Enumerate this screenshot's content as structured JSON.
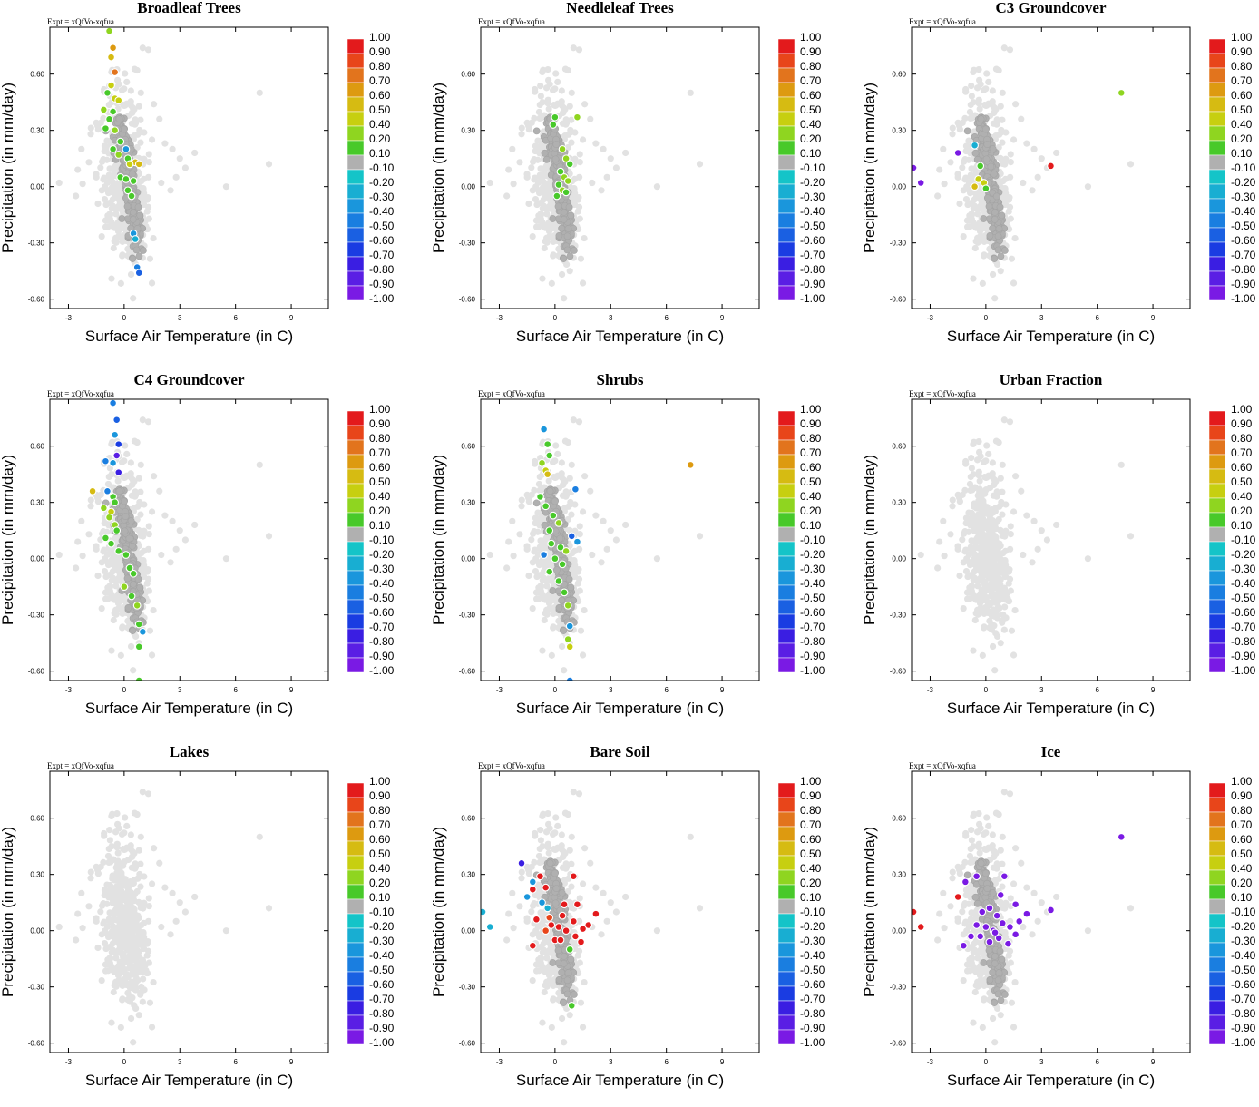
{
  "figure": {
    "expt_label": "Expt = xQfVo-xqfua"
  },
  "colorbar": {
    "labels": [
      "1.00",
      "0.90",
      "0.80",
      "0.70",
      "0.60",
      "0.50",
      "0.40",
      "0.20",
      "0.10",
      "-0.10",
      "-0.20",
      "-0.30",
      "-0.40",
      "-0.50",
      "-0.60",
      "-0.70",
      "-0.80",
      "-0.90",
      "-1.00"
    ],
    "colors": [
      "#e31a1c",
      "#e8451a",
      "#e2741d",
      "#dd9a10",
      "#d6bb12",
      "#c7cf10",
      "#8fd520",
      "#48c92a",
      "#b0b0b0",
      "#14c4c8",
      "#18aed2",
      "#1a96dc",
      "#1a7ee0",
      "#1a60e2",
      "#1a3ce2",
      "#3a1ee2",
      "#5a1ee4",
      "#7a1ae4"
    ]
  },
  "chart_data": [
    {
      "type": "scatter",
      "title": "Broadleaf Trees",
      "xlabel": "Surface Air Temperature (in C)",
      "ylabel": "Precipitation (in mm/day)",
      "xlim": [
        -4.0,
        11.0
      ],
      "ylim": [
        -0.65,
        0.85
      ],
      "xticks": [
        -3,
        0,
        3,
        6,
        9
      ],
      "yticks": [
        -0.6,
        -0.3,
        0.0,
        0.3,
        0.6
      ],
      "xtick_labels": [
        "-3",
        "0",
        "3",
        "6",
        "9"
      ],
      "ytick_labels": [
        "-0.60",
        "-0.30",
        "0.00",
        "0.30",
        "0.60"
      ],
      "highlight": [
        [
          -0.8,
          0.83,
          0.35
        ],
        [
          -0.6,
          0.74,
          0.65
        ],
        [
          -0.7,
          0.69,
          0.55
        ],
        [
          -0.5,
          0.61,
          0.75
        ],
        [
          -0.7,
          0.54,
          0.5
        ],
        [
          -0.9,
          0.5,
          0.25
        ],
        [
          -0.5,
          0.47,
          0.5
        ],
        [
          -0.3,
          0.46,
          0.45
        ],
        [
          -1.1,
          0.41,
          0.3
        ],
        [
          -0.6,
          0.4,
          0.15
        ],
        [
          -0.8,
          0.36,
          0.2
        ],
        [
          -1.0,
          0.31,
          0.25
        ],
        [
          -0.5,
          0.3,
          0.35
        ],
        [
          -0.2,
          0.24,
          0.15
        ],
        [
          -0.6,
          0.2,
          0.18
        ],
        [
          0.1,
          0.2,
          -0.3
        ],
        [
          -0.3,
          0.17,
          0.3
        ],
        [
          0.2,
          0.15,
          0.12
        ],
        [
          0.6,
          0.13,
          0.6
        ],
        [
          0.3,
          0.12,
          0.45
        ],
        [
          0.8,
          0.12,
          0.55
        ],
        [
          -0.2,
          0.05,
          0.12
        ],
        [
          0.1,
          0.04,
          0.12
        ],
        [
          0.5,
          0.03,
          0.15
        ],
        [
          0.2,
          -0.02,
          0.25
        ],
        [
          0.4,
          -0.05,
          0.15
        ],
        [
          0.5,
          -0.25,
          -0.3
        ],
        [
          0.6,
          -0.28,
          -0.25
        ],
        [
          0.7,
          -0.43,
          -0.4
        ],
        [
          0.8,
          -0.46,
          -0.55
        ]
      ]
    },
    {
      "type": "scatter",
      "title": "Needleleaf Trees",
      "xlabel": "Surface Air Temperature (in C)",
      "ylabel": "Precipitation (in mm/day)",
      "xlim": [
        -4.0,
        11.0
      ],
      "ylim": [
        -0.65,
        0.85
      ],
      "xticks": [
        -3,
        0,
        3,
        6,
        9
      ],
      "yticks": [
        -0.6,
        -0.3,
        0.0,
        0.3,
        0.6
      ],
      "xtick_labels": [
        "-3",
        "0",
        "3",
        "6",
        "9"
      ],
      "ytick_labels": [
        "-0.60",
        "-0.30",
        "0.00",
        "0.30",
        "0.60"
      ],
      "highlight": [
        [
          1.2,
          0.37,
          0.35
        ],
        [
          0.0,
          0.37,
          0.15
        ],
        [
          -0.1,
          0.33,
          0.12
        ],
        [
          0.4,
          0.2,
          0.35
        ],
        [
          0.6,
          0.15,
          0.3
        ],
        [
          0.8,
          0.12,
          0.25
        ],
        [
          0.3,
          0.08,
          0.18
        ],
        [
          0.5,
          0.05,
          0.3
        ],
        [
          0.7,
          0.03,
          0.4
        ],
        [
          0.2,
          0.01,
          0.15
        ],
        [
          0.4,
          -0.02,
          0.35
        ],
        [
          0.6,
          -0.03,
          0.2
        ],
        [
          0.1,
          -0.05,
          0.12
        ]
      ]
    },
    {
      "type": "scatter",
      "title": "C3 Groundcover",
      "xlabel": "Surface Air Temperature (in C)",
      "ylabel": "Precipitation (in mm/day)",
      "xlim": [
        -4.0,
        11.0
      ],
      "ylim": [
        -0.65,
        0.85
      ],
      "xticks": [
        -3,
        0,
        3,
        6,
        9
      ],
      "yticks": [
        -0.6,
        -0.3,
        0.0,
        0.3,
        0.6
      ],
      "xtick_labels": [
        "-3",
        "0",
        "3",
        "6",
        "9"
      ],
      "ytick_labels": [
        "-0.60",
        "-0.30",
        "0.00",
        "0.30",
        "0.60"
      ],
      "highlight": [
        [
          7.3,
          0.5,
          0.3
        ],
        [
          -3.9,
          0.1,
          -1.0
        ],
        [
          -3.5,
          0.02,
          -0.95
        ],
        [
          -1.5,
          0.18,
          -0.9
        ],
        [
          -0.6,
          0.22,
          -0.25
        ],
        [
          -0.3,
          0.11,
          0.15
        ],
        [
          3.5,
          0.11,
          1.0
        ],
        [
          -0.4,
          0.04,
          0.45
        ],
        [
          -0.1,
          0.02,
          0.5
        ],
        [
          0.0,
          -0.01,
          0.2
        ],
        [
          -0.6,
          0.0,
          0.6
        ]
      ]
    },
    {
      "type": "scatter",
      "title": "C4 Groundcover",
      "xlabel": "Surface Air Temperature (in C)",
      "ylabel": "Precipitation (in mm/day)",
      "xlim": [
        -4.0,
        11.0
      ],
      "ylim": [
        -0.65,
        0.85
      ],
      "xticks": [
        -3,
        0,
        3,
        6,
        9
      ],
      "yticks": [
        -0.6,
        -0.3,
        0.0,
        0.3,
        0.6
      ],
      "xtick_labels": [
        "-3",
        "0",
        "3",
        "6",
        "9"
      ],
      "ytick_labels": [
        "-0.60",
        "-0.30",
        "0.00",
        "0.30",
        "0.60"
      ],
      "highlight": [
        [
          -0.6,
          0.83,
          -0.45
        ],
        [
          -0.4,
          0.74,
          -0.55
        ],
        [
          -0.5,
          0.66,
          -0.3
        ],
        [
          -0.3,
          0.61,
          -0.6
        ],
        [
          -0.4,
          0.55,
          -0.8
        ],
        [
          -1.0,
          0.52,
          -0.4
        ],
        [
          -0.6,
          0.51,
          -0.3
        ],
        [
          -0.3,
          0.46,
          -0.7
        ],
        [
          -1.7,
          0.36,
          0.6
        ],
        [
          -0.9,
          0.36,
          -0.4
        ],
        [
          -0.6,
          0.33,
          0.2
        ],
        [
          -0.5,
          0.3,
          0.15
        ],
        [
          -1.1,
          0.27,
          0.3
        ],
        [
          -0.7,
          0.25,
          0.45
        ],
        [
          -0.8,
          0.22,
          0.3
        ],
        [
          -0.5,
          0.18,
          0.4
        ],
        [
          -0.4,
          0.15,
          0.2
        ],
        [
          -1.0,
          0.11,
          0.15
        ],
        [
          -0.7,
          0.08,
          0.25
        ],
        [
          -0.3,
          0.04,
          0.18
        ],
        [
          0.1,
          0.02,
          0.2
        ],
        [
          0.3,
          -0.05,
          0.15
        ],
        [
          0.5,
          -0.08,
          0.2
        ],
        [
          0.0,
          -0.15,
          0.35
        ],
        [
          0.4,
          -0.2,
          0.25
        ],
        [
          0.7,
          -0.25,
          0.4
        ],
        [
          0.8,
          -0.35,
          0.2
        ],
        [
          1.0,
          -0.39,
          -0.3
        ],
        [
          0.8,
          -0.47,
          0.2
        ],
        [
          0.8,
          -0.65,
          0.15
        ]
      ]
    },
    {
      "type": "scatter",
      "title": "Shrubs",
      "xlabel": "Surface Air Temperature (in C)",
      "ylabel": "Precipitation (in mm/day)",
      "xlim": [
        -4.0,
        11.0
      ],
      "ylim": [
        -0.65,
        0.85
      ],
      "xticks": [
        -3,
        0,
        3,
        6,
        9
      ],
      "yticks": [
        -0.6,
        -0.3,
        0.0,
        0.3,
        0.6
      ],
      "xtick_labels": [
        "-3",
        "0",
        "3",
        "6",
        "9"
      ],
      "ytick_labels": [
        "-0.60",
        "-0.30",
        "0.00",
        "0.30",
        "0.60"
      ],
      "highlight": [
        [
          -0.6,
          0.69,
          -0.3
        ],
        [
          -0.4,
          0.61,
          0.25
        ],
        [
          -0.3,
          0.55,
          0.15
        ],
        [
          -0.7,
          0.51,
          0.35
        ],
        [
          -0.5,
          0.47,
          0.5
        ],
        [
          -0.4,
          0.45,
          0.6
        ],
        [
          1.1,
          0.37,
          -0.4
        ],
        [
          -0.8,
          0.33,
          0.15
        ],
        [
          -0.5,
          0.28,
          0.2
        ],
        [
          -0.1,
          0.23,
          0.15
        ],
        [
          0.2,
          0.19,
          0.3
        ],
        [
          -0.3,
          0.15,
          0.2
        ],
        [
          0.9,
          0.12,
          -0.5
        ],
        [
          1.2,
          0.09,
          -0.3
        ],
        [
          -0.2,
          0.08,
          0.12
        ],
        [
          0.3,
          0.06,
          0.2
        ],
        [
          0.6,
          0.04,
          0.35
        ],
        [
          -0.6,
          0.02,
          -0.45
        ],
        [
          0.0,
          0.0,
          0.2
        ],
        [
          0.4,
          -0.03,
          0.18
        ],
        [
          -0.3,
          -0.07,
          0.15
        ],
        [
          0.2,
          -0.12,
          0.25
        ],
        [
          0.5,
          -0.18,
          0.18
        ],
        [
          0.7,
          -0.25,
          0.35
        ],
        [
          0.8,
          -0.36,
          -0.3
        ],
        [
          0.7,
          -0.43,
          0.4
        ],
        [
          0.8,
          -0.47,
          0.5
        ],
        [
          0.8,
          -0.65,
          -0.4
        ],
        [
          7.3,
          0.5,
          0.65
        ]
      ]
    },
    {
      "type": "scatter",
      "title": "Urban Fraction",
      "xlabel": "Surface Air Temperature (in C)",
      "ylabel": "Precipitation (in mm/day)",
      "xlim": [
        -4.0,
        11.0
      ],
      "ylim": [
        -0.65,
        0.85
      ],
      "xticks": [
        -3,
        0,
        3,
        6,
        9
      ],
      "yticks": [
        -0.6,
        -0.3,
        0.0,
        0.3,
        0.6
      ],
      "xtick_labels": [
        "-3",
        "0",
        "3",
        "6",
        "9"
      ],
      "ytick_labels": [
        "-0.60",
        "-0.30",
        "0.00",
        "0.30",
        "0.60"
      ],
      "highlight": []
    },
    {
      "type": "scatter",
      "title": "Lakes",
      "xlabel": "Surface Air Temperature (in C)",
      "ylabel": "Precipitation (in mm/day)",
      "xlim": [
        -4.0,
        11.0
      ],
      "ylim": [
        -0.65,
        0.85
      ],
      "xticks": [
        -3,
        0,
        3,
        6,
        9
      ],
      "yticks": [
        -0.6,
        -0.3,
        0.0,
        0.3,
        0.6
      ],
      "xtick_labels": [
        "-3",
        "0",
        "3",
        "6",
        "9"
      ],
      "ytick_labels": [
        "-0.60",
        "-0.30",
        "0.00",
        "0.30",
        "0.60"
      ],
      "highlight": []
    },
    {
      "type": "scatter",
      "title": "Bare Soil",
      "xlabel": "Surface Air Temperature (in C)",
      "ylabel": "Precipitation (in mm/day)",
      "xlim": [
        -4.0,
        11.0
      ],
      "ylim": [
        -0.65,
        0.85
      ],
      "xticks": [
        -3,
        0,
        3,
        6,
        9
      ],
      "yticks": [
        -0.6,
        -0.3,
        0.0,
        0.3,
        0.6
      ],
      "xtick_labels": [
        "-3",
        "0",
        "3",
        "6",
        "9"
      ],
      "ytick_labels": [
        "-0.60",
        "-0.30",
        "0.00",
        "0.30",
        "0.60"
      ],
      "highlight": [
        [
          -3.9,
          0.1,
          -0.2
        ],
        [
          -3.5,
          0.02,
          -0.25
        ],
        [
          -1.5,
          0.18,
          -0.3
        ],
        [
          -1.2,
          0.26,
          -0.3
        ],
        [
          -1.8,
          0.36,
          -0.75
        ],
        [
          -1.2,
          0.22,
          0.95
        ],
        [
          -0.8,
          0.29,
          0.95
        ],
        [
          -0.5,
          0.23,
          0.95
        ],
        [
          1.0,
          0.29,
          0.95
        ],
        [
          -0.7,
          0.15,
          -0.35
        ],
        [
          -0.4,
          0.12,
          -0.25
        ],
        [
          -0.3,
          0.07,
          0.9
        ],
        [
          0.5,
          0.14,
          0.95
        ],
        [
          1.2,
          0.14,
          0.95
        ],
        [
          2.2,
          0.09,
          0.95
        ],
        [
          -1.0,
          0.06,
          0.95
        ],
        [
          -0.2,
          0.03,
          0.95
        ],
        [
          0.2,
          0.02,
          0.95
        ],
        [
          0.6,
          0.0,
          0.95
        ],
        [
          1.0,
          0.05,
          0.95
        ],
        [
          1.5,
          0.01,
          0.95
        ],
        [
          -1.2,
          -0.08,
          0.95
        ],
        [
          0.0,
          -0.05,
          0.95
        ],
        [
          1.1,
          -0.03,
          0.95
        ],
        [
          1.8,
          0.03,
          0.95
        ],
        [
          0.4,
          0.08,
          0.95
        ],
        [
          -0.5,
          0.0,
          0.9
        ],
        [
          0.8,
          -0.1,
          0.2
        ],
        [
          0.9,
          -0.4,
          0.2
        ],
        [
          0.3,
          -0.05,
          0.95
        ],
        [
          1.4,
          -0.06,
          0.95
        ]
      ]
    },
    {
      "type": "scatter",
      "title": "Ice",
      "xlabel": "Surface Air Temperature (in C)",
      "ylabel": "Precipitation (in mm/day)",
      "xlim": [
        -4.0,
        11.0
      ],
      "ylim": [
        -0.65,
        0.85
      ],
      "xticks": [
        -3,
        0,
        3,
        6,
        9
      ],
      "yticks": [
        -0.6,
        -0.3,
        0.0,
        0.3,
        0.6
      ],
      "xtick_labels": [
        "-3",
        "0",
        "3",
        "6",
        "9"
      ],
      "ytick_labels": [
        "-0.60",
        "-0.30",
        "0.00",
        "0.30",
        "0.60"
      ],
      "highlight": [
        [
          7.3,
          0.5,
          -0.95
        ],
        [
          -3.9,
          0.1,
          1.0
        ],
        [
          -3.5,
          0.02,
          1.0
        ],
        [
          -1.5,
          0.18,
          1.0
        ],
        [
          -0.5,
          0.29,
          -0.95
        ],
        [
          -1.1,
          0.26,
          -0.95
        ],
        [
          1.0,
          0.29,
          -0.95
        ],
        [
          0.8,
          0.19,
          -0.95
        ],
        [
          1.6,
          0.14,
          -0.95
        ],
        [
          2.2,
          0.09,
          -0.95
        ],
        [
          3.5,
          0.11,
          -0.95
        ],
        [
          -0.2,
          0.1,
          -0.95
        ],
        [
          0.2,
          0.12,
          -0.95
        ],
        [
          0.6,
          0.08,
          -0.95
        ],
        [
          -0.5,
          0.03,
          -0.95
        ],
        [
          0.0,
          0.02,
          -0.95
        ],
        [
          0.4,
          0.0,
          -0.95
        ],
        [
          0.9,
          0.04,
          -0.95
        ],
        [
          1.3,
          0.02,
          -0.95
        ],
        [
          1.8,
          0.05,
          -0.95
        ],
        [
          -0.3,
          -0.03,
          -0.95
        ],
        [
          0.2,
          -0.06,
          -0.95
        ],
        [
          0.7,
          -0.04,
          -0.95
        ],
        [
          1.2,
          -0.07,
          -0.95
        ],
        [
          -0.8,
          -0.03,
          -0.95
        ],
        [
          -1.2,
          -0.08,
          -0.95
        ],
        [
          1.6,
          -0.02,
          -0.95
        ],
        [
          0.5,
          -0.01,
          -0.95
        ]
      ]
    }
  ]
}
